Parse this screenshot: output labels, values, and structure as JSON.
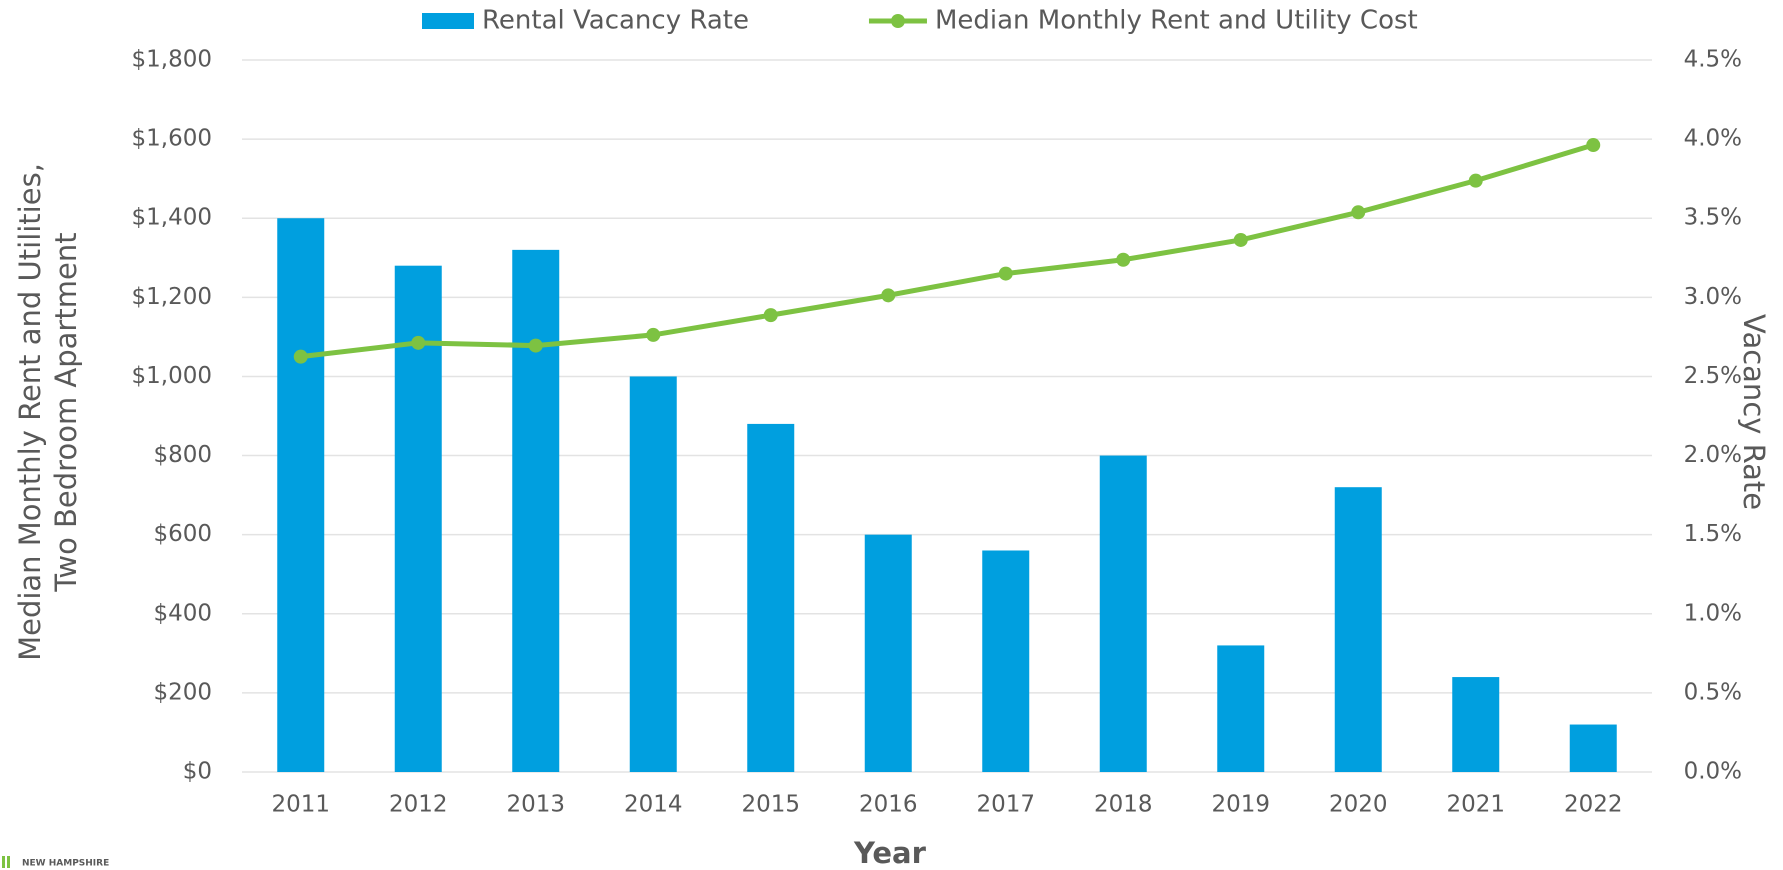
{
  "chart_data": {
    "type": "bar_line",
    "x_label": "Year",
    "y_label": [
      "Median Monthly Rent and Utilities,",
      "Two Bedroom Apartment"
    ],
    "y2_label": "Vacancy Rate",
    "footer": "NEW HAMPSHIRE",
    "categories": [
      "2011",
      "2012",
      "2013",
      "2014",
      "2015",
      "2016",
      "2017",
      "2018",
      "2019",
      "2020",
      "2021",
      "2022"
    ],
    "series": [
      {
        "name": "Rental Vacancy Rate",
        "color": "#009fdf",
        "type": "bar",
        "axis": "y2",
        "values": [
          3.5,
          3.2,
          3.3,
          2.5,
          2.2,
          1.5,
          1.4,
          2.0,
          0.8,
          1.8,
          0.6,
          0.3
        ]
      },
      {
        "name": "Median Monthly Rent and Utility Cost",
        "color": "#7dc242",
        "type": "line",
        "axis": "y",
        "values": [
          1050,
          1085,
          1078,
          1105,
          1155,
          1205,
          1260,
          1295,
          1345,
          1415,
          1495,
          1585
        ]
      }
    ],
    "ylim": [
      0,
      1800
    ],
    "yticks": [
      {
        "value": 0,
        "label": "$0"
      },
      {
        "value": 200,
        "label": "$200"
      },
      {
        "value": 400,
        "label": "$400"
      },
      {
        "value": 600,
        "label": "$600"
      },
      {
        "value": 800,
        "label": "$800"
      },
      {
        "value": 1000,
        "label": "$1,000"
      },
      {
        "value": 1200,
        "label": "$1,200"
      },
      {
        "value": 1400,
        "label": "$1,400"
      },
      {
        "value": 1600,
        "label": "$1,600"
      },
      {
        "value": 1800,
        "label": "$1,800"
      }
    ],
    "y2lim": [
      0,
      4.5
    ],
    "y2ticks": [
      {
        "value": 0,
        "label": "0.0%"
      },
      {
        "value": 0.5,
        "label": "0.5%"
      },
      {
        "value": 1,
        "label": "1.0%"
      },
      {
        "value": 1.5,
        "label": "1.5%"
      },
      {
        "value": 2,
        "label": "2.0%"
      },
      {
        "value": 2.5,
        "label": "2.5%"
      },
      {
        "value": 3,
        "label": "3.0%"
      },
      {
        "value": 3.5,
        "label": "3.5%"
      },
      {
        "value": 4,
        "label": "4.0%"
      },
      {
        "value": 4.5,
        "label": "4.5%"
      }
    ],
    "grid": true,
    "legend": "top"
  }
}
